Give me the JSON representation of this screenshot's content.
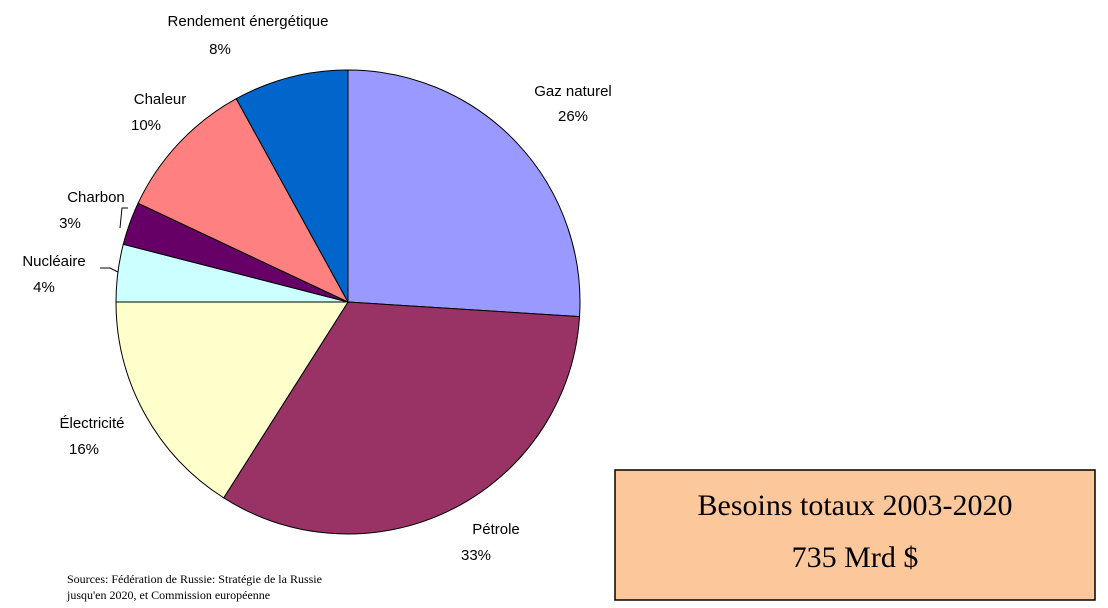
{
  "chart_data": {
    "type": "pie",
    "categories": [
      "Gaz naturel",
      "Pétrole",
      "Électricité",
      "Nucléaire",
      "Charbon",
      "Chaleur",
      "Rendement énergétique"
    ],
    "values": [
      26,
      33,
      16,
      4,
      3,
      10,
      8
    ],
    "value_labels": [
      "26%",
      "33%",
      "16%",
      "4%",
      "3%",
      "10%",
      "8%"
    ],
    "colors": [
      "#9999ff",
      "#993366",
      "#ffffcc",
      "#ccffff",
      "#660066",
      "#ff8080",
      "#0066cc"
    ],
    "annotations": {
      "box": [
        "Besoins totaux 2003-2020",
        "735 Mrd $"
      ],
      "source": [
        "Sources: Fédération de Russie: Stratégie de la Russie",
        "jusqu'en 2020, et Commission européenne"
      ]
    }
  }
}
